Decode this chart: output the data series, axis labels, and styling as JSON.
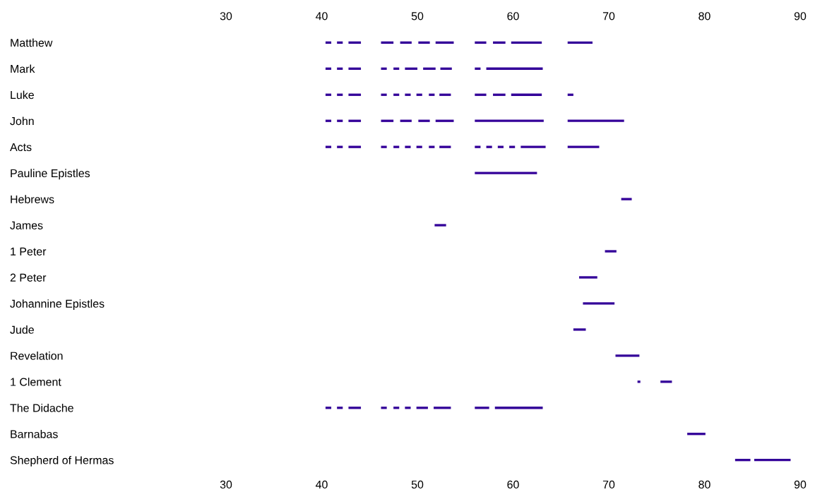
{
  "chart_data": {
    "type": "bar",
    "orientation": "horizontal",
    "color": "#330099",
    "categories": [
      "Matthew",
      "Mark",
      "Luke",
      "John",
      "Acts",
      "Pauline Epistles",
      "Hebrews",
      "James",
      "1 Peter",
      "2 Peter",
      "Johannine Epistles",
      "Jude",
      "Revelation",
      "1 Clement",
      "The Didache",
      "Barnabas",
      "Shepherd of Hermas"
    ],
    "xlim": [
      30,
      90
    ],
    "xticks": [
      30,
      40,
      50,
      60,
      70,
      80,
      90
    ],
    "x2lim": [
      30,
      90
    ],
    "x2ticks": [
      30,
      40,
      50,
      60,
      70,
      80,
      90
    ],
    "grid": false,
    "legend": false,
    "series": [
      {
        "base": [
          40.4,
          40.4,
          40.4,
          40.4,
          40.4,
          56.0,
          71.3,
          51.8,
          69.6,
          66.9,
          67.3,
          66.3,
          70.7,
          73.0,
          40.4,
          78.2,
          83.2
        ],
        "values": [
          0.6,
          0.6,
          0.6,
          0.6,
          0.6,
          6.5,
          1.1,
          1.2,
          1.2,
          1.9,
          3.3,
          1.3,
          2.5,
          0.3,
          0.6,
          1.9,
          1.6
        ]
      },
      {
        "base": [
          41.6,
          41.6,
          41.6,
          41.6,
          41.6,
          null,
          null,
          null,
          null,
          null,
          null,
          null,
          null,
          75.4,
          41.6,
          null,
          85.2
        ],
        "values": [
          0.6,
          0.6,
          0.6,
          0.6,
          0.6,
          null,
          null,
          null,
          null,
          null,
          null,
          null,
          null,
          1.2,
          0.6,
          null,
          3.8
        ]
      },
      {
        "base": [
          42.8,
          42.8,
          42.8,
          42.8,
          42.8,
          null,
          null,
          null,
          null,
          null,
          null,
          null,
          null,
          null,
          42.8,
          null,
          null
        ],
        "values": [
          1.3,
          1.3,
          1.3,
          1.3,
          1.3,
          null,
          null,
          null,
          null,
          null,
          null,
          null,
          null,
          null,
          1.3,
          null,
          null
        ]
      },
      {
        "base": [
          46.2,
          46.2,
          46.2,
          46.2,
          46.2,
          null,
          null,
          null,
          null,
          null,
          null,
          null,
          null,
          null,
          46.2,
          null,
          null
        ],
        "values": [
          1.3,
          0.6,
          0.6,
          1.3,
          0.6,
          null,
          null,
          null,
          null,
          null,
          null,
          null,
          null,
          null,
          0.6,
          null,
          null
        ]
      },
      {
        "base": [
          48.2,
          47.5,
          47.5,
          48.2,
          47.5,
          null,
          null,
          null,
          null,
          null,
          null,
          null,
          null,
          null,
          47.5,
          null,
          null
        ],
        "values": [
          1.2,
          0.6,
          0.6,
          1.2,
          0.6,
          null,
          null,
          null,
          null,
          null,
          null,
          null,
          null,
          null,
          0.6,
          null,
          null
        ]
      },
      {
        "base": [
          50.1,
          48.7,
          48.7,
          50.1,
          48.7,
          null,
          null,
          null,
          null,
          null,
          null,
          null,
          null,
          null,
          48.7,
          null,
          null
        ],
        "values": [
          1.2,
          1.3,
          0.6,
          1.2,
          0.6,
          null,
          null,
          null,
          null,
          null,
          null,
          null,
          null,
          null,
          0.6,
          null,
          null
        ]
      },
      {
        "base": [
          51.9,
          50.6,
          49.9,
          51.9,
          49.9,
          null,
          null,
          null,
          null,
          null,
          null,
          null,
          null,
          null,
          49.9,
          null,
          null
        ],
        "values": [
          1.9,
          1.3,
          0.6,
          1.9,
          0.6,
          null,
          null,
          null,
          null,
          null,
          null,
          null,
          null,
          null,
          1.2,
          null,
          null
        ]
      },
      {
        "base": [
          56.0,
          52.4,
          51.2,
          56.0,
          51.2,
          null,
          null,
          null,
          null,
          null,
          null,
          null,
          null,
          null,
          51.7,
          null,
          null
        ],
        "values": [
          1.2,
          1.2,
          0.6,
          7.2,
          0.6,
          null,
          null,
          null,
          null,
          null,
          null,
          null,
          null,
          null,
          1.8,
          null,
          null
        ]
      },
      {
        "base": [
          57.9,
          56.0,
          52.3,
          65.7,
          52.3,
          null,
          null,
          null,
          null,
          null,
          null,
          null,
          null,
          null,
          56.0,
          null,
          null
        ],
        "values": [
          1.3,
          0.6,
          1.2,
          5.9,
          1.2,
          null,
          null,
          null,
          null,
          null,
          null,
          null,
          null,
          null,
          1.5,
          null,
          null
        ]
      },
      {
        "base": [
          59.8,
          57.2,
          56.0,
          null,
          56.0,
          null,
          null,
          null,
          null,
          null,
          null,
          null,
          null,
          null,
          58.1,
          null,
          null
        ],
        "values": [
          3.2,
          5.9,
          1.2,
          null,
          0.6,
          null,
          null,
          null,
          null,
          null,
          null,
          null,
          null,
          null,
          5.0,
          null,
          null
        ]
      },
      {
        "base": [
          65.7,
          null,
          57.9,
          null,
          57.2,
          null,
          null,
          null,
          null,
          null,
          null,
          null,
          null,
          null,
          null,
          null,
          null
        ],
        "values": [
          2.6,
          null,
          1.3,
          null,
          0.6,
          null,
          null,
          null,
          null,
          null,
          null,
          null,
          null,
          null,
          null,
          null,
          null
        ]
      },
      {
        "base": [
          null,
          null,
          59.8,
          null,
          58.4,
          null,
          null,
          null,
          null,
          null,
          null,
          null,
          null,
          null,
          null,
          null,
          null
        ],
        "values": [
          null,
          null,
          3.2,
          null,
          0.6,
          null,
          null,
          null,
          null,
          null,
          null,
          null,
          null,
          null,
          null,
          null,
          null
        ]
      },
      {
        "base": [
          null,
          null,
          65.7,
          null,
          59.6,
          null,
          null,
          null,
          null,
          null,
          null,
          null,
          null,
          null,
          null,
          null,
          null
        ],
        "values": [
          null,
          null,
          0.6,
          null,
          0.6,
          null,
          null,
          null,
          null,
          null,
          null,
          null,
          null,
          null,
          null,
          null,
          null
        ]
      },
      {
        "base": [
          null,
          null,
          null,
          null,
          60.8,
          null,
          null,
          null,
          null,
          null,
          null,
          null,
          null,
          null,
          null,
          null,
          null
        ],
        "values": [
          null,
          null,
          null,
          null,
          2.6,
          null,
          null,
          null,
          null,
          null,
          null,
          null,
          null,
          null,
          null,
          null,
          null
        ]
      },
      {
        "base": [
          null,
          null,
          null,
          null,
          65.7,
          null,
          null,
          null,
          null,
          null,
          null,
          null,
          null,
          null,
          null,
          null,
          null
        ],
        "values": [
          null,
          null,
          null,
          null,
          3.3,
          null,
          null,
          null,
          null,
          null,
          null,
          null,
          null,
          null,
          null,
          null,
          null
        ]
      }
    ]
  }
}
